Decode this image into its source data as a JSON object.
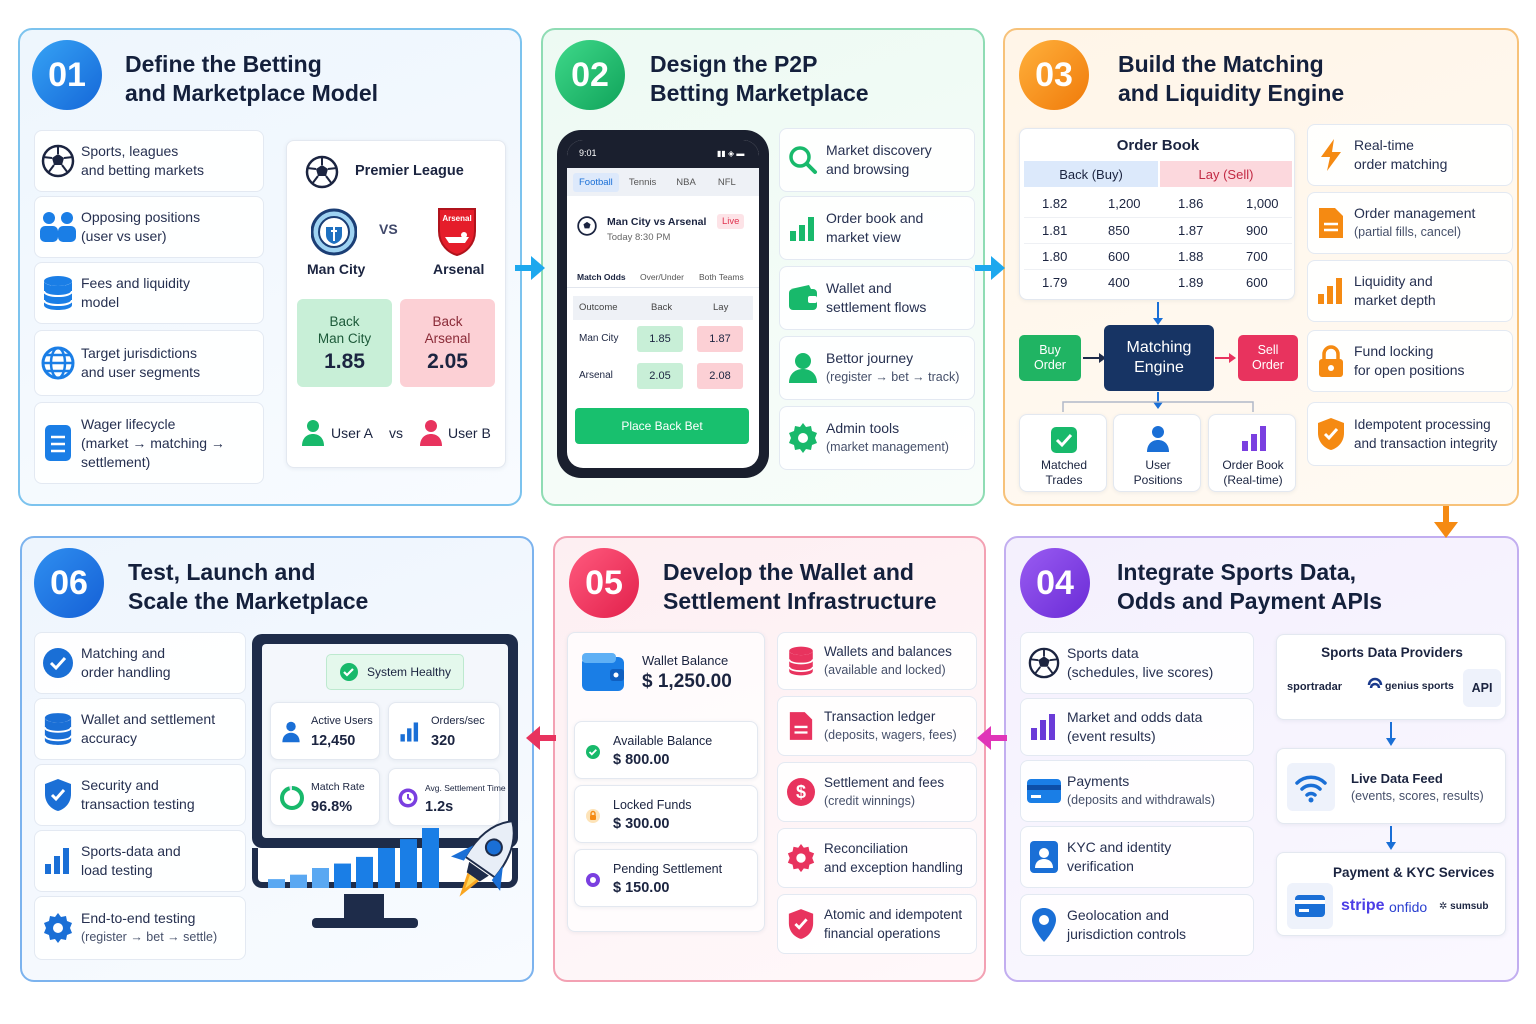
{
  "p1": {
    "num": "01",
    "title1": "Define the Betting",
    "title2": "and Marketplace Model",
    "items": [
      {
        "l1": "Sports, leagues",
        "l2": "and betting markets"
      },
      {
        "l1": "Opposing positions",
        "l2": "(user vs user)"
      },
      {
        "l1": "Fees and liquidity",
        "l2": "model"
      },
      {
        "l1": "Target jurisdictions",
        "l2": "and user segments"
      },
      {
        "l1": "Wager lifecycle",
        "l2": "(market → matching →",
        "l3": "settlement)"
      }
    ],
    "match": {
      "league": "Premier League",
      "team_a": "Man City",
      "vs": "VS",
      "team_b": "Arsenal",
      "crest_b": "Arsenal",
      "back_a_l1": "Back",
      "back_a_l2": "Man City",
      "back_a_odds": "1.85",
      "back_b_l1": "Back",
      "back_b_l2": "Arsenal",
      "back_b_odds": "2.05",
      "user_a": "User A",
      "vs2": "vs",
      "user_b": "User B"
    }
  },
  "p2": {
    "num": "02",
    "title1": "Design the P2P",
    "title2": "Betting Marketplace",
    "phone": {
      "time": "9:01",
      "tabs": [
        "Football",
        "Tennis",
        "NBA",
        "NFL"
      ],
      "match": "Man City vs Arsenal",
      "live": "Live",
      "when": "Today 8:30 PM",
      "subtabs": [
        "Match Odds",
        "Over/Under",
        "Both Teams"
      ],
      "headers": [
        "Outcome",
        "Back",
        "Lay"
      ],
      "rows": [
        [
          "Man City",
          "1.85",
          "1.87"
        ],
        [
          "Arsenal",
          "2.05",
          "2.08"
        ]
      ],
      "cta": "Place Back Bet"
    },
    "items": [
      {
        "l1": "Market discovery",
        "l2": "and browsing"
      },
      {
        "l1": "Order book and",
        "l2": "market view"
      },
      {
        "l1": "Wallet and",
        "l2": "settlement flows"
      },
      {
        "l1": "Bettor journey",
        "l2": "(register → bet → track)"
      },
      {
        "l1": "Admin tools",
        "l2": "(market management)"
      }
    ]
  },
  "p3": {
    "num": "03",
    "title1": "Build the Matching",
    "title2": "and Liquidity Engine",
    "book": {
      "title": "Order Book",
      "back": "Back (Buy)",
      "lay": "Lay (Sell)",
      "back_rows": [
        [
          "1.82",
          "1,200"
        ],
        [
          "1.81",
          "850"
        ],
        [
          "1.80",
          "600"
        ],
        [
          "1.79",
          "400"
        ]
      ],
      "lay_rows": [
        [
          "1.86",
          "1,000"
        ],
        [
          "1.87",
          "900"
        ],
        [
          "1.88",
          "700"
        ],
        [
          "1.89",
          "600"
        ]
      ]
    },
    "engine": {
      "buy1": "Buy",
      "buy2": "Order",
      "eng1": "Matching",
      "eng2": "Engine",
      "sell1": "Sell",
      "sell2": "Order",
      "outs": [
        {
          "l1": "Matched",
          "l2": "Trades"
        },
        {
          "l1": "User",
          "l2": "Positions"
        },
        {
          "l1": "Order Book",
          "l2": "(Real-time)"
        }
      ]
    },
    "items": [
      {
        "l1": "Real-time",
        "l2": "order matching"
      },
      {
        "l1": "Order management",
        "l2": "(partial fills, cancel)"
      },
      {
        "l1": "Liquidity and",
        "l2": "market depth"
      },
      {
        "l1": "Fund locking",
        "l2": "for open positions"
      },
      {
        "l1": "Idempotent processing",
        "l2": "and transaction integrity"
      }
    ]
  },
  "p4": {
    "num": "04",
    "title1": "Integrate Sports Data,",
    "title2": "Odds and Payment APIs",
    "items": [
      {
        "l1": "Sports data",
        "l2": "(schedules, live scores)"
      },
      {
        "l1": "Market and odds data",
        "l2": "(event results)"
      },
      {
        "l1": "Payments",
        "l2": "(deposits and withdrawals)"
      },
      {
        "l1": "KYC and identity",
        "l2": "verification"
      },
      {
        "l1": "Geolocation and",
        "l2": "jurisdiction controls"
      }
    ],
    "providers": {
      "title": "Sports Data Providers",
      "a": "sportradar",
      "b": "genius sports",
      "c": "API"
    },
    "feed": {
      "l1": "Live Data Feed",
      "l2": "(events, scores, results)"
    },
    "pay": {
      "title": "Payment & KYC Services",
      "a": "stripe",
      "b": "onfido",
      "c": "sumsub"
    }
  },
  "p5": {
    "num": "05",
    "title1": "Develop the Wallet and",
    "title2": "Settlement Infrastructure",
    "wallet": {
      "label": "Wallet Balance",
      "value": "$ 1,250.00"
    },
    "balances": [
      {
        "label": "Available Balance",
        "value": "$ 800.00"
      },
      {
        "label": "Locked Funds",
        "value": "$ 300.00"
      },
      {
        "label": "Pending Settlement",
        "value": "$ 150.00"
      }
    ],
    "items": [
      {
        "l1": "Wallets and balances",
        "l2": "(available and locked)"
      },
      {
        "l1": "Transaction ledger",
        "l2": "(deposits, wagers, fees)"
      },
      {
        "l1": "Settlement and fees",
        "l2": "(credit winnings)"
      },
      {
        "l1": "Reconciliation",
        "l2": "and exception handling"
      },
      {
        "l1": "Atomic and idempotent",
        "l2": "financial operations"
      }
    ]
  },
  "p6": {
    "num": "06",
    "title1": "Test, Launch and",
    "title2": "Scale the Marketplace",
    "items": [
      {
        "l1": "Matching and",
        "l2": "order handling"
      },
      {
        "l1": "Wallet and settlement",
        "l2": "accuracy"
      },
      {
        "l1": "Security and",
        "l2": "transaction testing"
      },
      {
        "l1": "Sports-data and",
        "l2": "load testing"
      },
      {
        "l1": "End-to-end testing",
        "l2": "(register → bet → settle)"
      }
    ],
    "monitor": {
      "status": "System Healthy",
      "stats": [
        {
          "label": "Active Users",
          "value": "12,450"
        },
        {
          "label": "Orders/sec",
          "value": "320"
        },
        {
          "label": "Match Rate",
          "value": "96.8%"
        },
        {
          "label": "Avg. Settlement Time",
          "value": "1.2s"
        }
      ],
      "bars": [
        8,
        12,
        18,
        22,
        28,
        36,
        44,
        54
      ]
    }
  },
  "colors": {
    "blue": "#1a7ee6",
    "green": "#18b96b",
    "orange": "#f58a12",
    "purple": "#7a3fe0",
    "pink": "#e8335e"
  }
}
